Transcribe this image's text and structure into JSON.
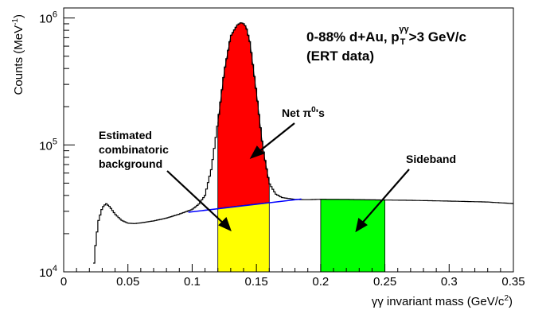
{
  "chart_data": {
    "type": "line",
    "xlabel_main": "γγ invariant mass (GeV/c",
    "xlabel_sup": "2",
    "xlabel_tail": ")",
    "ylabel_main": "Counts (MeV",
    "ylabel_sup": "-1",
    "ylabel_tail": ")",
    "xlim": [
      0,
      0.35
    ],
    "ylim": [
      10000,
      1200000
    ],
    "y_scale": "log",
    "x_ticks": [
      {
        "v": 0,
        "label": "0"
      },
      {
        "v": 0.05,
        "label": "0.05"
      },
      {
        "v": 0.1,
        "label": "0.1"
      },
      {
        "v": 0.15,
        "label": "0.15"
      },
      {
        "v": 0.2,
        "label": "0.2"
      },
      {
        "v": 0.25,
        "label": "0.25"
      },
      {
        "v": 0.3,
        "label": "0.3"
      },
      {
        "v": 0.35,
        "label": "0.35"
      }
    ],
    "y_ticks": [
      {
        "v": 10000,
        "base": "10",
        "exp": "4"
      },
      {
        "v": 100000,
        "base": "10",
        "exp": "5"
      },
      {
        "v": 1000000,
        "base": "10",
        "exp": "6"
      }
    ],
    "series": [
      {
        "x": [
          0.023,
          0.025,
          0.027,
          0.03,
          0.033,
          0.036,
          0.04,
          0.045,
          0.05,
          0.055,
          0.06,
          0.07,
          0.08,
          0.09,
          0.1,
          0.105,
          0.11,
          0.115,
          0.12,
          0.125,
          0.13,
          0.135,
          0.138,
          0.14,
          0.142,
          0.145,
          0.15,
          0.155,
          0.16,
          0.165,
          0.17,
          0.18,
          0.19,
          0.2,
          0.22,
          0.25,
          0.27,
          0.3,
          0.33,
          0.35
        ],
        "y": [
          10000,
          17000,
          25000,
          32000,
          34500,
          32500,
          28500,
          25500,
          24200,
          24000,
          24300,
          25200,
          26500,
          28500,
          31000,
          34000,
          40000,
          65000,
          150000,
          380000,
          720000,
          880000,
          920000,
          900000,
          850000,
          640000,
          260000,
          95000,
          50000,
          41000,
          38500,
          37200,
          37000,
          37300,
          37200,
          36800,
          36600,
          36100,
          35500,
          34500
        ]
      }
    ],
    "background_fit": {
      "x": [
        0.097,
        0.185
      ],
      "y": [
        29500,
        37500
      ]
    },
    "regions": [
      {
        "name": "Net π0's region",
        "x": [
          0.12,
          0.16
        ],
        "color": "#ff0000"
      },
      {
        "name": "Estimated combinatoric background region",
        "x": [
          0.12,
          0.16
        ],
        "color": "#ffff00"
      },
      {
        "name": "Sideband",
        "x": [
          0.2,
          0.25
        ],
        "color": "#00ff00"
      }
    ],
    "title_line1_a": "0-88% d+Au, p",
    "title_line1_sub": "T",
    "title_line1_sup": "γγ",
    "title_line1_b": ">3 GeV/c",
    "title_line2": "(ERT data)",
    "annotations": {
      "net_pi0_a": "Net π",
      "net_pi0_sup": "0",
      "net_pi0_b": "'s",
      "combinatoric_line1": "Estimated",
      "combinatoric_line2": "combinatoric",
      "combinatoric_line3": "background",
      "sideband": "Sideband"
    },
    "colors": {
      "signal": "#ff0000",
      "background": "#ffff00",
      "sideband": "#00ff00",
      "fit_line": "#0000ff",
      "histogram": "#000000"
    },
    "grid": false
  }
}
